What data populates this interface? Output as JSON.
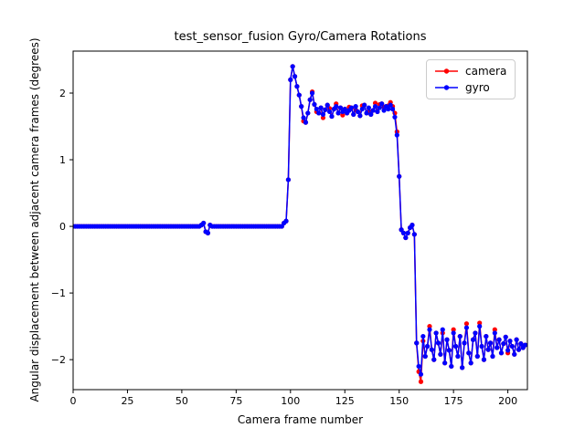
{
  "figure": {
    "title": "test_sensor_fusion Gyro/Camera Rotations",
    "xlabel": "Camera frame number",
    "ylabel": "Angular displacement between adjacent camera frames (degrees)"
  },
  "legend": {
    "items": [
      {
        "label": "camera",
        "color": "#ff0000"
      },
      {
        "label": "gyro",
        "color": "#0000ff"
      }
    ]
  },
  "chart_data": {
    "type": "line",
    "title": "test_sensor_fusion Gyro/Camera Rotations",
    "xlabel": "Camera frame number",
    "ylabel": "Angular displacement between adjacent camera frames (degrees)",
    "xlim": [
      0,
      209
    ],
    "ylim": [
      -2.45,
      2.63
    ],
    "xticks": [
      0,
      25,
      50,
      75,
      100,
      125,
      150,
      175,
      200
    ],
    "yticks": [
      -2,
      -1,
      0,
      1,
      2
    ],
    "grid": false,
    "legend_position": "upper right",
    "x_start": 0,
    "x_step": 1,
    "series": [
      {
        "name": "camera",
        "color": "#ff0000",
        "marker": "dot",
        "values": [
          0,
          0,
          0,
          0,
          0,
          0,
          0,
          0,
          0,
          0,
          0,
          0,
          0,
          0,
          0,
          0,
          0,
          0,
          0,
          0,
          0,
          0,
          0,
          0,
          0,
          0,
          0,
          0,
          0,
          0,
          0,
          0,
          0,
          0,
          0,
          0,
          0,
          0,
          0,
          0,
          0,
          0,
          0,
          0,
          0,
          0,
          0,
          0,
          0,
          0,
          0,
          0,
          0,
          0,
          0,
          0,
          0,
          0,
          0,
          0.02,
          0.05,
          -0.08,
          -0.1,
          0.02,
          0,
          0,
          0,
          0,
          0,
          0,
          0,
          0,
          0,
          0,
          0,
          0,
          0,
          0,
          0,
          0,
          0,
          0,
          0,
          0,
          0,
          0,
          0,
          0,
          0,
          0,
          0,
          0,
          0,
          0,
          0,
          0,
          0,
          0.05,
          0.08,
          0.7,
          2.2,
          2.4,
          2.25,
          2.1,
          1.97,
          1.8,
          1.58,
          1.56,
          1.7,
          1.9,
          2.02,
          1.83,
          1.72,
          1.7,
          1.78,
          1.63,
          1.75,
          1.82,
          1.77,
          1.65,
          1.76,
          1.84,
          1.7,
          1.78,
          1.67,
          1.76,
          1.7,
          1.79,
          1.78,
          1.68,
          1.75,
          1.72,
          1.66,
          1.81,
          1.82,
          1.7,
          1.73,
          1.68,
          1.74,
          1.85,
          1.72,
          1.83,
          1.84,
          1.79,
          1.8,
          1.81,
          1.86,
          1.8,
          1.7,
          1.42,
          0.75,
          -0.05,
          -0.1,
          -0.17,
          -0.1,
          -0.02,
          0.02,
          -0.12,
          -1.75,
          -2.18,
          -2.33,
          -1.72,
          -1.95,
          -1.8,
          -1.5,
          -1.85,
          -2.0,
          -1.6,
          -1.75,
          -1.92,
          -1.6,
          -2.05,
          -1.7,
          -1.86,
          -2.1,
          -1.55,
          -1.8,
          -1.95,
          -1.65,
          -2.12,
          -1.75,
          -1.46,
          -1.9,
          -2.05,
          -1.7,
          -1.6,
          -1.95,
          -1.45,
          -1.8,
          -2.0,
          -1.65,
          -1.85,
          -1.75,
          -1.95,
          -1.55,
          -1.82,
          -1.7,
          -1.9,
          -1.76,
          -1.66,
          -1.9,
          -1.72,
          -1.8,
          -1.92,
          -1.7,
          -1.85,
          -1.76,
          -1.82,
          -1.78
        ]
      },
      {
        "name": "gyro",
        "color": "#0000ff",
        "marker": "dot",
        "values": [
          0,
          0,
          0,
          0,
          0,
          0,
          0,
          0,
          0,
          0,
          0,
          0,
          0,
          0,
          0,
          0,
          0,
          0,
          0,
          0,
          0,
          0,
          0,
          0,
          0,
          0,
          0,
          0,
          0,
          0,
          0,
          0,
          0,
          0,
          0,
          0,
          0,
          0,
          0,
          0,
          0,
          0,
          0,
          0,
          0,
          0,
          0,
          0,
          0,
          0,
          0,
          0,
          0,
          0,
          0,
          0,
          0,
          0,
          0,
          0.02,
          0.05,
          -0.08,
          -0.1,
          0.02,
          0,
          0,
          0,
          0,
          0,
          0,
          0,
          0,
          0,
          0,
          0,
          0,
          0,
          0,
          0,
          0,
          0,
          0,
          0,
          0,
          0,
          0,
          0,
          0,
          0,
          0,
          0,
          0,
          0,
          0,
          0,
          0,
          0,
          0.05,
          0.08,
          0.7,
          2.2,
          2.4,
          2.25,
          2.1,
          1.97,
          1.8,
          1.63,
          1.56,
          1.7,
          1.9,
          2.0,
          1.83,
          1.76,
          1.7,
          1.78,
          1.68,
          1.75,
          1.82,
          1.72,
          1.65,
          1.76,
          1.8,
          1.7,
          1.78,
          1.72,
          1.76,
          1.7,
          1.74,
          1.78,
          1.68,
          1.8,
          1.72,
          1.66,
          1.76,
          1.82,
          1.7,
          1.78,
          1.68,
          1.74,
          1.8,
          1.72,
          1.78,
          1.84,
          1.74,
          1.8,
          1.76,
          1.82,
          1.76,
          1.64,
          1.37,
          0.75,
          -0.05,
          -0.1,
          -0.17,
          -0.1,
          -0.02,
          0.02,
          -0.12,
          -1.75,
          -2.1,
          -2.22,
          -1.65,
          -1.95,
          -1.8,
          -1.55,
          -1.85,
          -2.0,
          -1.6,
          -1.75,
          -1.92,
          -1.55,
          -2.05,
          -1.7,
          -1.86,
          -2.1,
          -1.6,
          -1.8,
          -1.95,
          -1.65,
          -2.12,
          -1.75,
          -1.52,
          -1.9,
          -2.05,
          -1.7,
          -1.6,
          -1.95,
          -1.5,
          -1.8,
          -2.0,
          -1.65,
          -1.85,
          -1.75,
          -1.95,
          -1.6,
          -1.82,
          -1.7,
          -1.9,
          -1.76,
          -1.66,
          -1.86,
          -1.72,
          -1.8,
          -1.92,
          -1.7,
          -1.85,
          -1.76,
          -1.82,
          -1.78
        ]
      }
    ]
  }
}
